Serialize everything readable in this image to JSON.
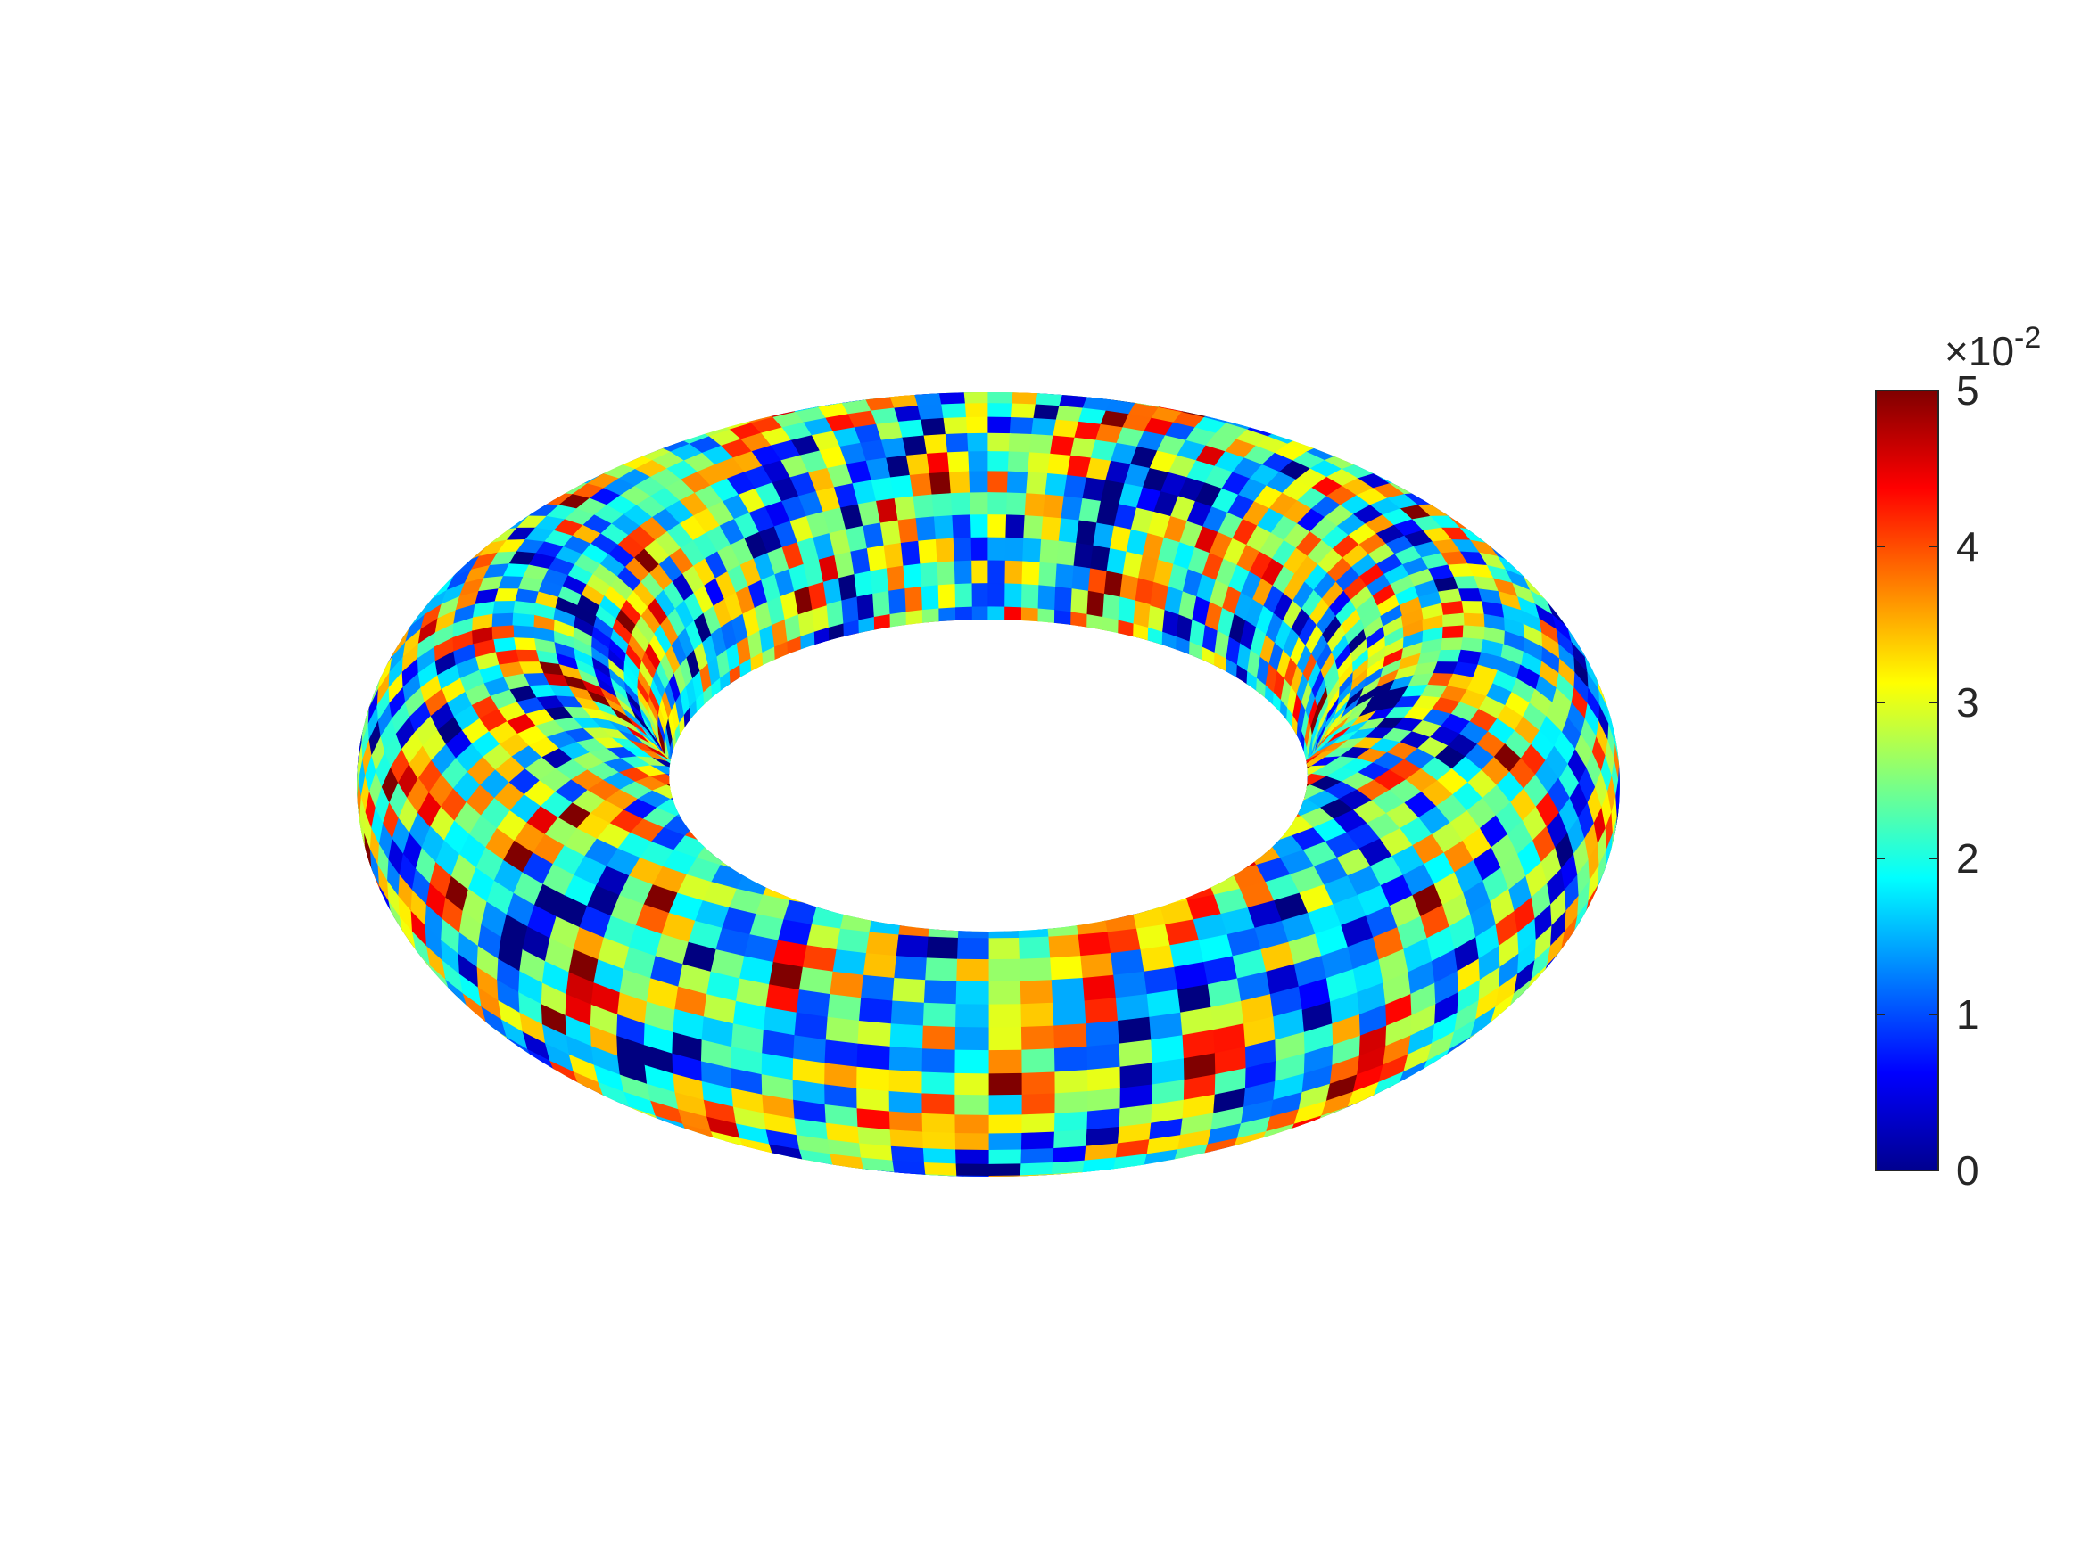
{
  "chart_data": {
    "type": "heatmap",
    "title": "",
    "surface": "torus",
    "colormap": "jet",
    "colorbar": {
      "location": "right",
      "clim": [
        0,
        5
      ],
      "ticks": [
        "0",
        "1",
        "2",
        "3",
        "4",
        "5"
      ],
      "exponent_base": "×10",
      "exponent_power": "-2"
    },
    "grid": false,
    "axes_visible": false
  }
}
